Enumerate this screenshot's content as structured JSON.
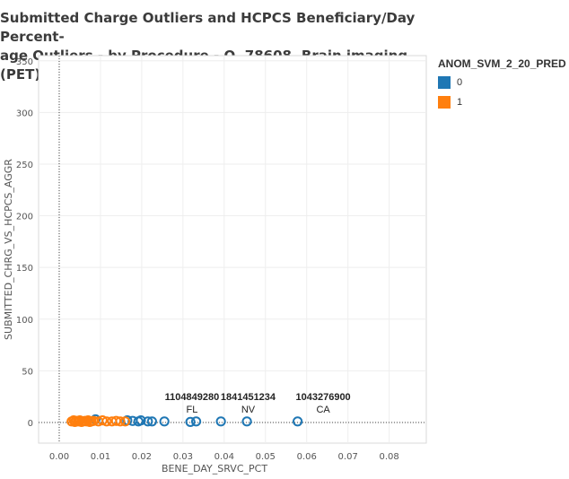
{
  "chart_data": {
    "type": "scatter",
    "title": "Submitted Charge Outliers and HCPCS Beneficiary/Day Percent-\nage Outliers - by Procedure - O, 78608, Brain imaging (PET)",
    "xlabel": "BENE_DAY_SRVC_PCT",
    "ylabel": "SUBMITTED_CHRG_VS_HCPCS_AGGR",
    "xlim": [
      -0.005,
      0.089
    ],
    "ylim": [
      -20,
      355
    ],
    "x_ticks": [
      0.0,
      0.01,
      0.02,
      0.03,
      0.04,
      0.05,
      0.06,
      0.07,
      0.08
    ],
    "x_tick_labels": [
      "0.00",
      "0.01",
      "0.02",
      "0.03",
      "0.04",
      "0.05",
      "0.06",
      "0.07",
      "0.08"
    ],
    "y_ticks": [
      0,
      50,
      100,
      150,
      200,
      250,
      300,
      350
    ],
    "y_tick_labels": [
      "0",
      "50",
      "100",
      "150",
      "200",
      "250",
      "300",
      "350"
    ],
    "grid": true,
    "legend": {
      "title": "ANOM_SVM_2_20_PRED",
      "placement": "right",
      "entries": [
        {
          "label": "0",
          "color": "#1f77b4"
        },
        {
          "label": "1",
          "color": "#ff7f0e"
        }
      ]
    },
    "series": [
      {
        "name": "0",
        "color": "#1f77b4",
        "points": [
          {
            "x": 0.0088,
            "y": 3
          },
          {
            "x": 0.0165,
            "y": 2
          },
          {
            "x": 0.0178,
            "y": 1.5
          },
          {
            "x": 0.0192,
            "y": 1
          },
          {
            "x": 0.0198,
            "y": 2
          },
          {
            "x": 0.0215,
            "y": 1
          },
          {
            "x": 0.0225,
            "y": 1
          },
          {
            "x": 0.0255,
            "y": 1
          },
          {
            "x": 0.0318,
            "y": 0.5
          },
          {
            "x": 0.0332,
            "y": 1
          },
          {
            "x": 0.0392,
            "y": 1
          },
          {
            "x": 0.0455,
            "y": 1
          },
          {
            "x": 0.0578,
            "y": 1
          }
        ]
      },
      {
        "name": "1",
        "color": "#ff7f0e",
        "points": [
          {
            "x": 0.003,
            "y": 1
          },
          {
            "x": 0.0035,
            "y": 2
          },
          {
            "x": 0.0038,
            "y": 0.5
          },
          {
            "x": 0.0042,
            "y": 1.5
          },
          {
            "x": 0.0046,
            "y": 1
          },
          {
            "x": 0.005,
            "y": 2
          },
          {
            "x": 0.0054,
            "y": 0.5
          },
          {
            "x": 0.0058,
            "y": 1
          },
          {
            "x": 0.0062,
            "y": 1.5
          },
          {
            "x": 0.0066,
            "y": 1
          },
          {
            "x": 0.007,
            "y": 2
          },
          {
            "x": 0.0074,
            "y": 0.5
          },
          {
            "x": 0.0078,
            "y": 1
          },
          {
            "x": 0.0083,
            "y": 1.5
          },
          {
            "x": 0.0095,
            "y": 1
          },
          {
            "x": 0.0105,
            "y": 2
          },
          {
            "x": 0.0115,
            "y": 1
          },
          {
            "x": 0.0128,
            "y": 1
          },
          {
            "x": 0.0138,
            "y": 1.5
          },
          {
            "x": 0.0148,
            "y": 1
          },
          {
            "x": 0.016,
            "y": 1
          }
        ]
      }
    ],
    "annotations": [
      {
        "x": 0.0322,
        "y": 1,
        "lines": [
          "1104849280",
          "FL"
        ]
      },
      {
        "x": 0.0458,
        "y": 1,
        "lines": [
          "1841451234",
          "NV"
        ]
      },
      {
        "x": 0.064,
        "y": 1,
        "lines": [
          "1043276900",
          "CA"
        ]
      }
    ]
  }
}
